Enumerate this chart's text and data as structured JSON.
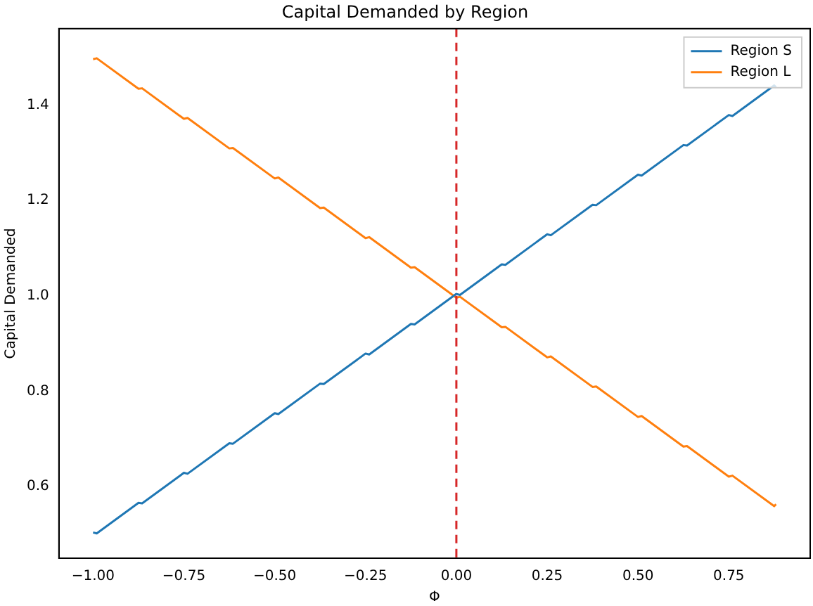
{
  "chart_data": {
    "type": "line",
    "title": "Capital Demanded by Region",
    "xlabel": "Φ",
    "ylabel": "Capital Demanded",
    "x": [
      -1,
      -0.99,
      -0.875,
      -0.865,
      -0.75,
      -0.74,
      -0.625,
      -0.615,
      -0.5,
      -0.49,
      -0.375,
      -0.365,
      -0.25,
      -0.24,
      -0.125,
      -0.115,
      0,
      0.01,
      0.125,
      0.135,
      0.25,
      0.26,
      0.375,
      0.385,
      0.5,
      0.51,
      0.625,
      0.635,
      0.75,
      0.76,
      0.875,
      0.88
    ],
    "series": [
      {
        "name": "Region S",
        "color": "#1f77b4",
        "values": [
          0.504,
          0.502,
          0.566,
          0.565,
          0.629,
          0.627,
          0.691,
          0.69,
          0.754,
          0.752,
          0.816,
          0.815,
          0.879,
          0.877,
          0.941,
          0.94,
          1.004,
          1.002,
          1.066,
          1.065,
          1.129,
          1.127,
          1.191,
          1.19,
          1.254,
          1.252,
          1.316,
          1.315,
          1.379,
          1.377,
          1.441,
          1.437
        ]
      },
      {
        "name": "Region L",
        "color": "#ff7f0e",
        "values": [
          1.496,
          1.498,
          1.434,
          1.435,
          1.371,
          1.373,
          1.309,
          1.31,
          1.246,
          1.248,
          1.184,
          1.185,
          1.121,
          1.123,
          1.059,
          1.06,
          0.996,
          0.998,
          0.934,
          0.935,
          0.871,
          0.873,
          0.809,
          0.81,
          0.746,
          0.748,
          0.684,
          0.685,
          0.621,
          0.623,
          0.559,
          0.563
        ]
      }
    ],
    "xlim": [
      -1.094,
      0.974
    ],
    "ylim": [
      0.45,
      1.56
    ],
    "xticks": [
      {
        "value": -1,
        "label": "−1.00"
      },
      {
        "value": -0.75,
        "label": "−0.75"
      },
      {
        "value": -0.5,
        "label": "−0.50"
      },
      {
        "value": -0.25,
        "label": "−0.25"
      },
      {
        "value": 0,
        "label": "0.00"
      },
      {
        "value": 0.25,
        "label": "0.25"
      },
      {
        "value": 0.5,
        "label": "0.50"
      },
      {
        "value": 0.75,
        "label": "0.75"
      }
    ],
    "yticks": [
      {
        "value": 0.6,
        "label": "0.6"
      },
      {
        "value": 0.8,
        "label": "0.8"
      },
      {
        "value": 1.0,
        "label": "1.0"
      },
      {
        "value": 1.2,
        "label": "1.2"
      },
      {
        "value": 1.4,
        "label": "1.4"
      }
    ],
    "ref_lines": [
      {
        "axis": "x",
        "value": 0,
        "color": "#d62728",
        "line_style": "dashed"
      }
    ],
    "legend": "top right",
    "grid": false,
    "marker": "none",
    "line_style": "solid"
  }
}
